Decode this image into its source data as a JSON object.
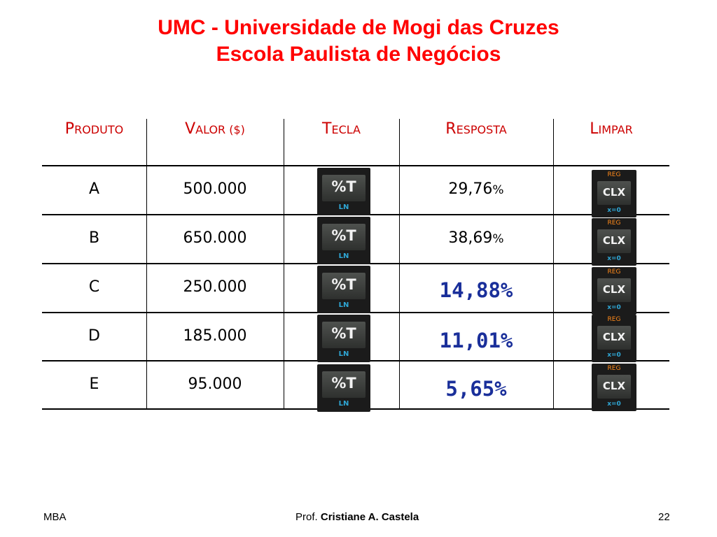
{
  "title": {
    "line1": "UMC - Universidade de Mogi das Cruzes",
    "line2": "Escola Paulista de Negócios"
  },
  "table": {
    "headers": [
      {
        "first": "P",
        "rest": "RODUTO"
      },
      {
        "first": "V",
        "rest": "ALOR ($)"
      },
      {
        "first": "T",
        "rest": "ECLA"
      },
      {
        "first": "R",
        "rest": "ESPOSTA"
      },
      {
        "first": "L",
        "rest": "IMPAR"
      }
    ],
    "rows": [
      {
        "produto": "A",
        "valor": "500.000",
        "resposta": "29,76",
        "pct": "%"
      },
      {
        "produto": "B",
        "valor": "650.000",
        "resposta": "38,69",
        "pct": "%"
      },
      {
        "produto": "C",
        "valor": "250.000",
        "resposta": "14,88%",
        "pct": ""
      },
      {
        "produto": "D",
        "valor": "185.000",
        "resposta": "11,01%",
        "pct": ""
      },
      {
        "produto": "E",
        "valor": "95.000",
        "resposta": "5,65%",
        "pct": ""
      }
    ]
  },
  "keys": {
    "pct_main": "%T",
    "pct_sub": "LN",
    "clx_top": "REG",
    "clx_main": "CLX",
    "clx_sub": "x=0"
  },
  "footer": {
    "left": "MBA",
    "center_prefix": "Prof.",
    "center_name": "Cristiane A. Castela",
    "page": "22"
  },
  "colors": {
    "title": "#ff0000",
    "header": "#cc0000",
    "highlight_value": "#1a2f9a",
    "key_body": "#1b1b1b",
    "key_blue_label": "#2fa7d6",
    "key_orange_label": "#ff8a1a"
  }
}
